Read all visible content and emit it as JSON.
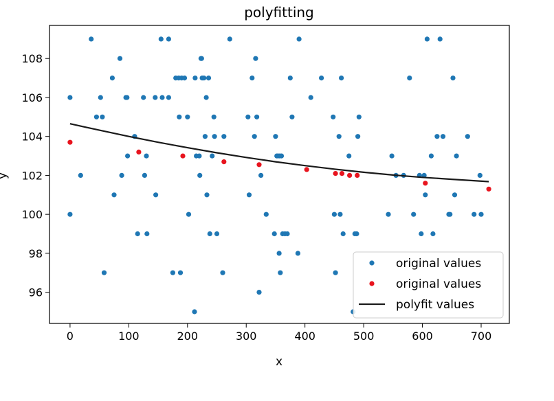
{
  "chart_data": {
    "type": "scatter",
    "title": "polyfitting",
    "xlabel": "x",
    "ylabel": "y",
    "xlim": [
      -35,
      748
    ],
    "ylim": [
      94.4,
      109.7
    ],
    "xticks": [
      "0",
      "100",
      "200",
      "300",
      "400",
      "500",
      "600",
      "700"
    ],
    "yticks": [
      "96",
      "98",
      "100",
      "102",
      "104",
      "106",
      "108"
    ],
    "legend_position": "lower-right",
    "series": [
      {
        "name": "original values",
        "kind": "points",
        "color": "#1f77b4",
        "points": [
          [
            0,
            100
          ],
          [
            0,
            106
          ],
          [
            18,
            102
          ],
          [
            36,
            109
          ],
          [
            45,
            105
          ],
          [
            52,
            106
          ],
          [
            55,
            105
          ],
          [
            58,
            97
          ],
          [
            72,
            107
          ],
          [
            75,
            101
          ],
          [
            85,
            108
          ],
          [
            88,
            102
          ],
          [
            95,
            106
          ],
          [
            97,
            106
          ],
          [
            98,
            103
          ],
          [
            110,
            104
          ],
          [
            115,
            99
          ],
          [
            125,
            106
          ],
          [
            127,
            102
          ],
          [
            130,
            103
          ],
          [
            131,
            99
          ],
          [
            145,
            106
          ],
          [
            146,
            101
          ],
          [
            155,
            109
          ],
          [
            157,
            106
          ],
          [
            168,
            109
          ],
          [
            168,
            106
          ],
          [
            175,
            97
          ],
          [
            180,
            107
          ],
          [
            185,
            107
          ],
          [
            186,
            105
          ],
          [
            188,
            97
          ],
          [
            190,
            107
          ],
          [
            195,
            107
          ],
          [
            200,
            105
          ],
          [
            202,
            100
          ],
          [
            212,
            95
          ],
          [
            213,
            107
          ],
          [
            215,
            103
          ],
          [
            220,
            103
          ],
          [
            221,
            102
          ],
          [
            223,
            108
          ],
          [
            224,
            108
          ],
          [
            225,
            107
          ],
          [
            228,
            107
          ],
          [
            230,
            104
          ],
          [
            232,
            106
          ],
          [
            233,
            101
          ],
          [
            236,
            107
          ],
          [
            238,
            99
          ],
          [
            242,
            103
          ],
          [
            245,
            105
          ],
          [
            246,
            104
          ],
          [
            250,
            99
          ],
          [
            260,
            97
          ],
          [
            262,
            104
          ],
          [
            272,
            109
          ],
          [
            303,
            105
          ],
          [
            305,
            101
          ],
          [
            310,
            107
          ],
          [
            314,
            104
          ],
          [
            316,
            108
          ],
          [
            318,
            105
          ],
          [
            322,
            96
          ],
          [
            325,
            102
          ],
          [
            334,
            100
          ],
          [
            348,
            99
          ],
          [
            350,
            104
          ],
          [
            352,
            103
          ],
          [
            354,
            103
          ],
          [
            356,
            98
          ],
          [
            357,
            103
          ],
          [
            358,
            97
          ],
          [
            360,
            103
          ],
          [
            362,
            99
          ],
          [
            366,
            99
          ],
          [
            370,
            99
          ],
          [
            375,
            107
          ],
          [
            378,
            105
          ],
          [
            388,
            98
          ],
          [
            390,
            109
          ],
          [
            410,
            106
          ],
          [
            428,
            107
          ],
          [
            448,
            105
          ],
          [
            450,
            100
          ],
          [
            452,
            97
          ],
          [
            458,
            104
          ],
          [
            460,
            100
          ],
          [
            462,
            107
          ],
          [
            465,
            99
          ],
          [
            475,
            103
          ],
          [
            482,
            95
          ],
          [
            485,
            99
          ],
          [
            488,
            99
          ],
          [
            490,
            104
          ],
          [
            492,
            105
          ],
          [
            542,
            100
          ],
          [
            548,
            103
          ],
          [
            555,
            102
          ],
          [
            568,
            102
          ],
          [
            578,
            107
          ],
          [
            585,
            100
          ],
          [
            595,
            102
          ],
          [
            598,
            99
          ],
          [
            603,
            102
          ],
          [
            605,
            101
          ],
          [
            608,
            109
          ],
          [
            615,
            103
          ],
          [
            618,
            99
          ],
          [
            625,
            104
          ],
          [
            630,
            109
          ],
          [
            635,
            104
          ],
          [
            645,
            100
          ],
          [
            647,
            100
          ],
          [
            652,
            107
          ],
          [
            655,
            101
          ],
          [
            658,
            103
          ],
          [
            677,
            104
          ],
          [
            688,
            100
          ],
          [
            698,
            102
          ],
          [
            700,
            100
          ]
        ]
      },
      {
        "name": "original values",
        "kind": "points",
        "color": "#e8141e",
        "points": [
          [
            0,
            103.7
          ],
          [
            117,
            103.2
          ],
          [
            192,
            103.0
          ],
          [
            262,
            102.7
          ],
          [
            322,
            102.55
          ],
          [
            403,
            102.3
          ],
          [
            452,
            102.1
          ],
          [
            463,
            102.1
          ],
          [
            476,
            102.0
          ],
          [
            489,
            102.0
          ],
          [
            605,
            101.6
          ],
          [
            713,
            101.3
          ]
        ]
      },
      {
        "name": "polyfit values",
        "kind": "line",
        "color": "#1a1a1a",
        "x": [
          0,
          50,
          100,
          150,
          200,
          250,
          300,
          350,
          400,
          450,
          500,
          550,
          600,
          650,
          713
        ],
        "y": [
          104.65,
          104.32,
          104.0,
          103.7,
          103.42,
          103.16,
          102.92,
          102.7,
          102.5,
          102.32,
          102.16,
          102.02,
          101.9,
          101.8,
          101.68
        ]
      }
    ]
  }
}
